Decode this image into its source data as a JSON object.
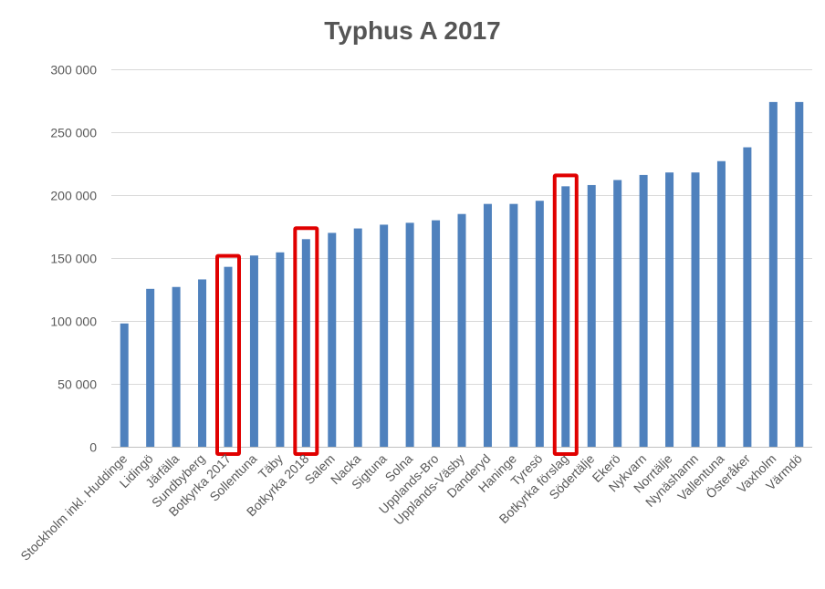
{
  "chart_data": {
    "type": "bar",
    "title": "Typhus A 2017",
    "xlabel": "",
    "ylabel": "",
    "ylim": [
      0,
      300000
    ],
    "yticks": [
      0,
      50000,
      100000,
      150000,
      200000,
      250000,
      300000
    ],
    "ytick_labels": [
      "0",
      "50 000",
      "100 000",
      "150 000",
      "200 000",
      "250 000",
      "300 000"
    ],
    "grid": true,
    "legend": "none",
    "bar_color": "#4f81bd",
    "highlight_color": "#e00000",
    "categories": [
      "Stockholm inkl. Huddinge",
      "Lidingö",
      "Järfälla",
      "Sundbyberg",
      "Botkyrka 2017",
      "Sollentuna",
      "Täby",
      "Botkyrka 2018",
      "Salem",
      "Nacka",
      "Sigtuna",
      "Solna",
      "Upplands-Bro",
      "Upplands-Väsby",
      "Danderyd",
      "Haninge",
      "Tyresö",
      "Botkyrka förslag",
      "Södertälje",
      "Ekerö",
      "Nykvarn",
      "Norrtälje",
      "Nynäshamn",
      "Vallentuna",
      "Österåker",
      "Vaxholm",
      "Värmdö"
    ],
    "values": [
      98000,
      125500,
      127000,
      133000,
      143000,
      152000,
      154500,
      165000,
      170000,
      173500,
      176500,
      178000,
      180000,
      185000,
      193000,
      193000,
      195500,
      207000,
      208000,
      212000,
      216000,
      218000,
      218000,
      227000,
      238000,
      274000,
      274000
    ],
    "highlighted_categories": [
      "Botkyrka 2017",
      "Botkyrka 2018",
      "Botkyrka förslag"
    ]
  }
}
